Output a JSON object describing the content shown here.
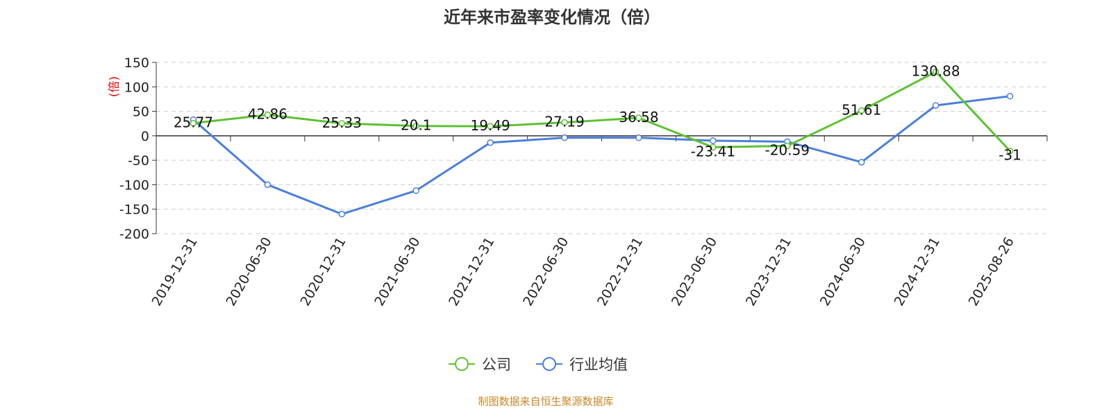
{
  "chart_data": {
    "type": "line",
    "title": "近年来市盈率变化情况（倍）",
    "ylabel": "(倍)",
    "xlabel": "",
    "ylim": [
      -200,
      150
    ],
    "yticks": [
      150,
      100,
      50,
      0,
      -50,
      -100,
      -150,
      -200
    ],
    "grid": true,
    "legend_position": "bottom-center",
    "categories": [
      "2019-12-31",
      "2020-06-30",
      "2020-12-31",
      "2021-06-30",
      "2021-12-31",
      "2022-06-30",
      "2022-12-31",
      "2023-06-30",
      "2023-12-31",
      "2024-06-30",
      "2024-12-31",
      "2025-08-26"
    ],
    "series": [
      {
        "name": "公司",
        "color": "#5cc232",
        "values": [
          25.77,
          42.86,
          25.33,
          20.1,
          19.49,
          27.19,
          36.58,
          -23.41,
          -20.59,
          51.61,
          130.88,
          -31
        ],
        "labels": [
          "25.77",
          "42.86",
          "25.33",
          "20.1",
          "19.49",
          "27.19",
          "36.58",
          "-23.41",
          "-20.59",
          "51.61",
          "130.88",
          "-31"
        ]
      },
      {
        "name": "行业均值",
        "color": "#4a7fdb",
        "values": [
          33,
          -100,
          -160,
          -112,
          -14,
          -4,
          -4,
          -10,
          -12,
          -54,
          62,
          81
        ]
      }
    ],
    "source": "制图数据来自恒生聚源数据库"
  }
}
